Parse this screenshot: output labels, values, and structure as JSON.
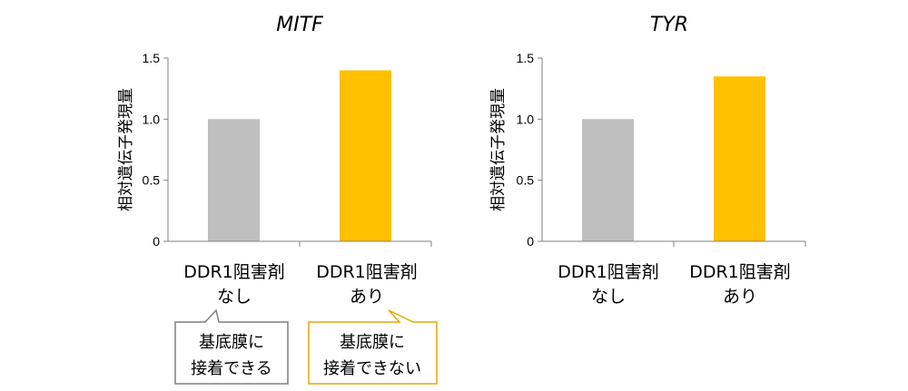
{
  "chart_data": [
    {
      "type": "bar",
      "title": "MITF",
      "ylabel": "相対遺伝子発現量",
      "ylim": [
        0,
        1.5
      ],
      "yticks": [
        "0",
        "0.5",
        "1.0",
        "1.5"
      ],
      "categories": [
        {
          "line1": "DDR1阻害剤",
          "line2": "なし"
        },
        {
          "line1": "DDR1阻害剤",
          "line2": "あり"
        }
      ],
      "values": [
        1.0,
        1.4
      ],
      "colors": [
        "#bfbfbf",
        "#ffc000"
      ],
      "grid": false,
      "annotations": [
        {
          "line1": "基底膜に",
          "line2": "接着できる",
          "border_color": "#7f7f7f"
        },
        {
          "line1": "基底膜に",
          "line2": "接着できない",
          "border_color": "#e3a900"
        }
      ]
    },
    {
      "type": "bar",
      "title": "TYR",
      "ylabel": "相対遺伝子発現量",
      "ylim": [
        0,
        1.5
      ],
      "yticks": [
        "0",
        "0.5",
        "1.0",
        "1.5"
      ],
      "categories": [
        {
          "line1": "DDR1阻害剤",
          "line2": "なし"
        },
        {
          "line1": "DDR1阻害剤",
          "line2": "あり"
        }
      ],
      "values": [
        1.0,
        1.35
      ],
      "colors": [
        "#bfbfbf",
        "#ffc000"
      ],
      "grid": false
    }
  ]
}
